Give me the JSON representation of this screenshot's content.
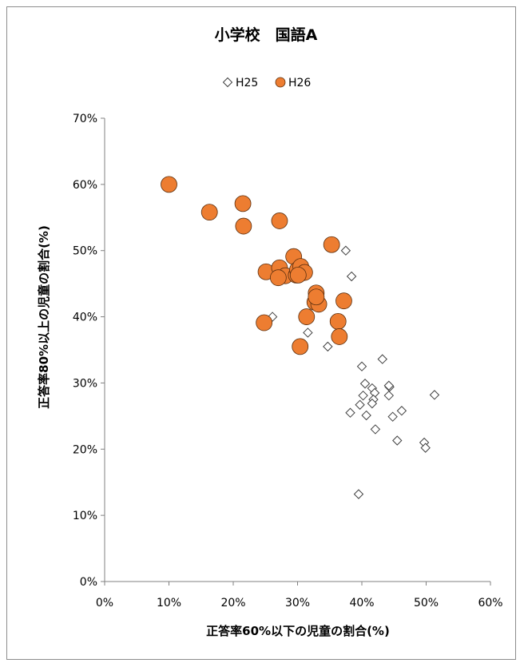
{
  "chart_data": {
    "type": "scatter",
    "title": "小学校　国語A",
    "xlabel": "正答率60%以下の児童の割合(%)",
    "ylabel": "正答率80%以上の児童の割合(%)",
    "xlim": [
      0,
      60
    ],
    "ylim": [
      0,
      70
    ],
    "x_ticks": [
      "0%",
      "10%",
      "20%",
      "30%",
      "40%",
      "50%",
      "60%"
    ],
    "y_ticks": [
      "0%",
      "10%",
      "20%",
      "30%",
      "40%",
      "50%",
      "60%",
      "70%"
    ],
    "grid": false,
    "legend_position": "top",
    "series": [
      {
        "name": "H25",
        "marker": "diamond-open",
        "color": "#404040",
        "points": [
          [
            37.5,
            50.0
          ],
          [
            38.4,
            46.1
          ],
          [
            26.1,
            40.0
          ],
          [
            31.6,
            37.6
          ],
          [
            34.7,
            35.5
          ],
          [
            43.2,
            33.6
          ],
          [
            40.0,
            32.5
          ],
          [
            40.5,
            29.9
          ],
          [
            41.6,
            29.2
          ],
          [
            44.3,
            29.4
          ],
          [
            44.2,
            29.6
          ],
          [
            51.3,
            28.2
          ],
          [
            40.2,
            28.1
          ],
          [
            42.0,
            28.5
          ],
          [
            44.2,
            28.1
          ],
          [
            41.8,
            27.5
          ],
          [
            39.7,
            26.7
          ],
          [
            41.6,
            26.9
          ],
          [
            46.2,
            25.8
          ],
          [
            38.2,
            25.5
          ],
          [
            40.7,
            25.1
          ],
          [
            44.8,
            24.9
          ],
          [
            42.1,
            23.0
          ],
          [
            45.5,
            21.3
          ],
          [
            49.7,
            21.0
          ],
          [
            49.9,
            20.2
          ],
          [
            39.5,
            13.2
          ]
        ]
      },
      {
        "name": "H26",
        "marker": "circle-filled",
        "color": "#ED7D31",
        "stroke": "#5a2e0e",
        "points": [
          [
            10.0,
            60.0
          ],
          [
            16.3,
            55.8
          ],
          [
            21.5,
            57.1
          ],
          [
            21.6,
            53.7
          ],
          [
            27.2,
            54.5
          ],
          [
            35.3,
            50.9
          ],
          [
            29.4,
            49.1
          ],
          [
            25.1,
            46.8
          ],
          [
            27.2,
            47.4
          ],
          [
            28.1,
            46.2
          ],
          [
            27.0,
            45.9
          ],
          [
            29.8,
            46.3
          ],
          [
            30.0,
            47.1
          ],
          [
            30.5,
            47.6
          ],
          [
            31.1,
            46.7
          ],
          [
            30.1,
            46.3
          ],
          [
            32.9,
            43.6
          ],
          [
            32.7,
            42.2
          ],
          [
            33.3,
            41.9
          ],
          [
            32.9,
            43.0
          ],
          [
            37.2,
            42.4
          ],
          [
            31.4,
            40.0
          ],
          [
            36.3,
            39.3
          ],
          [
            24.8,
            39.1
          ],
          [
            36.5,
            37.0
          ],
          [
            30.4,
            35.5
          ]
        ]
      }
    ]
  }
}
